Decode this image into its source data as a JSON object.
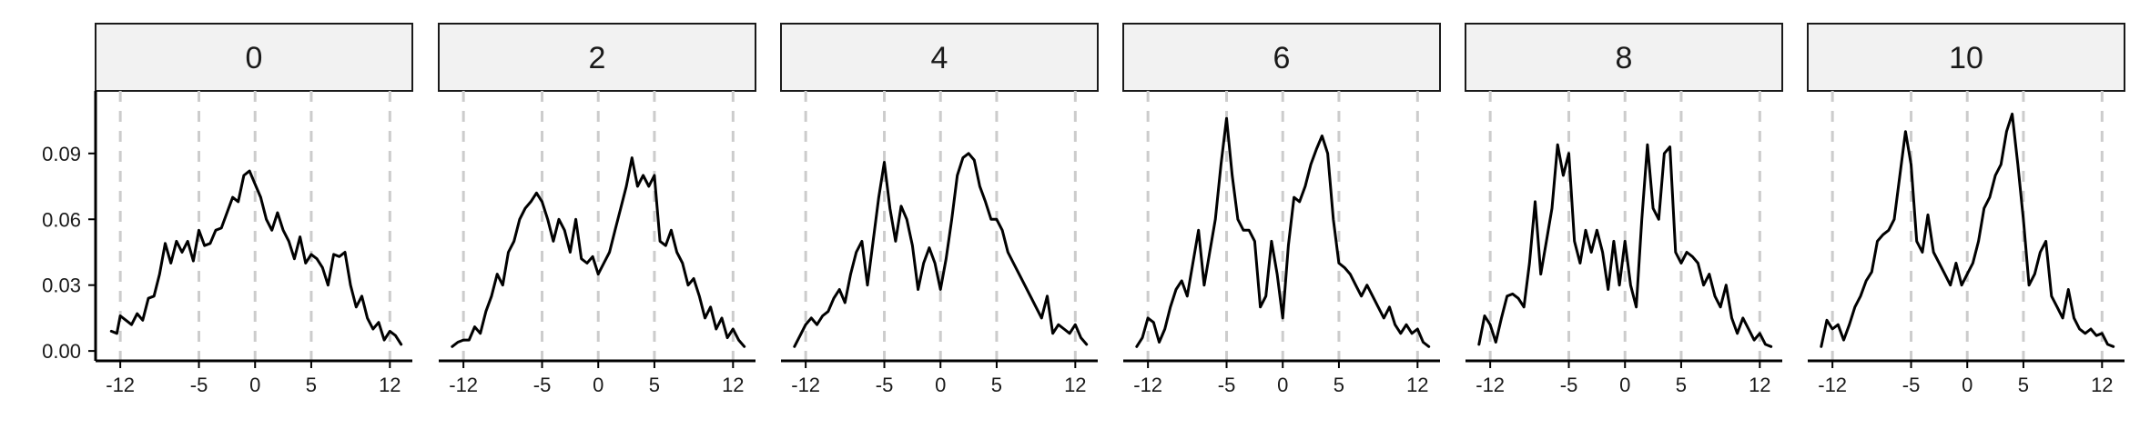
{
  "chart_data": {
    "type": "line",
    "facet_labels": [
      "0",
      "2",
      "4",
      "6",
      "8",
      "10"
    ],
    "x_ticks": [
      -12,
      -5,
      0,
      5,
      12
    ],
    "y_ticks": [
      "0.00",
      "0.03",
      "0.06",
      "0.09"
    ],
    "xlim": [
      -14.2,
      14
    ],
    "ylim": [
      -0.0045,
      0.1185
    ],
    "reference_lines_x": [
      -12,
      -5,
      0,
      5,
      12
    ],
    "line_color": "#000000",
    "reference_line_color": "#cccccc",
    "strip_fill": "#f2f2f2",
    "panels": [
      {
        "label": "0",
        "x": [
          -12.8,
          -12.3,
          -12.0,
          -11.5,
          -11.0,
          -10.5,
          -10.0,
          -9.5,
          -9.0,
          -8.5,
          -8.0,
          -7.5,
          -7.0,
          -6.5,
          -6.0,
          -5.5,
          -5.0,
          -4.5,
          -4.0,
          -3.5,
          -3.0,
          -2.5,
          -2.0,
          -1.5,
          -1.0,
          -0.5,
          0.0,
          0.5,
          1.0,
          1.5,
          2.0,
          2.5,
          3.0,
          3.5,
          4.0,
          4.5,
          5.0,
          5.5,
          6.0,
          6.5,
          7.0,
          7.5,
          8.0,
          8.5,
          9.0,
          9.5,
          10.0,
          10.5,
          11.0,
          11.5,
          12.0,
          12.5,
          13.0
        ],
        "y": [
          0.009,
          0.008,
          0.016,
          0.014,
          0.012,
          0.017,
          0.014,
          0.024,
          0.025,
          0.035,
          0.049,
          0.04,
          0.05,
          0.045,
          0.05,
          0.041,
          0.055,
          0.048,
          0.049,
          0.055,
          0.056,
          0.063,
          0.07,
          0.068,
          0.08,
          0.082,
          0.076,
          0.07,
          0.06,
          0.055,
          0.063,
          0.055,
          0.05,
          0.042,
          0.052,
          0.04,
          0.044,
          0.042,
          0.038,
          0.03,
          0.044,
          0.043,
          0.045,
          0.03,
          0.02,
          0.025,
          0.015,
          0.01,
          0.013,
          0.005,
          0.009,
          0.007,
          0.003
        ]
      },
      {
        "label": "2",
        "x": [
          -13.0,
          -12.5,
          -12.0,
          -11.5,
          -11.0,
          -10.5,
          -10.0,
          -9.5,
          -9.0,
          -8.5,
          -8.0,
          -7.5,
          -7.0,
          -6.5,
          -6.0,
          -5.5,
          -5.0,
          -4.5,
          -4.0,
          -3.5,
          -3.0,
          -2.5,
          -2.0,
          -1.5,
          -1.0,
          -0.5,
          0.0,
          0.5,
          1.0,
          1.5,
          2.0,
          2.5,
          3.0,
          3.5,
          4.0,
          4.5,
          5.0,
          5.5,
          6.0,
          6.5,
          7.0,
          7.5,
          8.0,
          8.5,
          9.0,
          9.5,
          10.0,
          10.5,
          11.0,
          11.5,
          12.0,
          12.5,
          13.0
        ],
        "y": [
          0.002,
          0.004,
          0.005,
          0.005,
          0.011,
          0.008,
          0.018,
          0.025,
          0.035,
          0.03,
          0.045,
          0.05,
          0.06,
          0.065,
          0.068,
          0.072,
          0.068,
          0.06,
          0.05,
          0.06,
          0.055,
          0.045,
          0.06,
          0.042,
          0.04,
          0.043,
          0.035,
          0.04,
          0.045,
          0.055,
          0.065,
          0.075,
          0.088,
          0.075,
          0.08,
          0.075,
          0.08,
          0.05,
          0.048,
          0.055,
          0.045,
          0.04,
          0.03,
          0.033,
          0.025,
          0.015,
          0.02,
          0.01,
          0.015,
          0.006,
          0.01,
          0.005,
          0.002
        ]
      },
      {
        "label": "4",
        "x": [
          -13.0,
          -12.5,
          -12.0,
          -11.5,
          -11.0,
          -10.5,
          -10.0,
          -9.5,
          -9.0,
          -8.5,
          -8.0,
          -7.5,
          -7.0,
          -6.5,
          -6.0,
          -5.5,
          -5.0,
          -4.5,
          -4.0,
          -3.5,
          -3.0,
          -2.5,
          -2.0,
          -1.5,
          -1.0,
          -0.5,
          0.0,
          0.5,
          1.0,
          1.5,
          2.0,
          2.5,
          3.0,
          3.5,
          4.0,
          4.5,
          5.0,
          5.5,
          6.0,
          6.5,
          7.0,
          7.5,
          8.0,
          8.5,
          9.0,
          9.5,
          10.0,
          10.5,
          11.0,
          11.5,
          12.0,
          12.5,
          13.0
        ],
        "y": [
          0.002,
          0.007,
          0.012,
          0.015,
          0.012,
          0.016,
          0.018,
          0.024,
          0.028,
          0.022,
          0.035,
          0.045,
          0.05,
          0.03,
          0.05,
          0.07,
          0.086,
          0.065,
          0.05,
          0.066,
          0.06,
          0.048,
          0.028,
          0.04,
          0.047,
          0.04,
          0.028,
          0.042,
          0.06,
          0.08,
          0.088,
          0.09,
          0.087,
          0.075,
          0.068,
          0.06,
          0.06,
          0.055,
          0.045,
          0.04,
          0.035,
          0.03,
          0.025,
          0.02,
          0.015,
          0.025,
          0.008,
          0.012,
          0.01,
          0.008,
          0.012,
          0.006,
          0.003
        ]
      },
      {
        "label": "6",
        "x": [
          -13.0,
          -12.5,
          -12.0,
          -11.5,
          -11.0,
          -10.5,
          -10.0,
          -9.5,
          -9.0,
          -8.5,
          -8.0,
          -7.5,
          -7.0,
          -6.5,
          -6.0,
          -5.5,
          -5.0,
          -4.5,
          -4.0,
          -3.5,
          -3.0,
          -2.5,
          -2.0,
          -1.5,
          -1.0,
          -0.5,
          0.0,
          0.5,
          1.0,
          1.5,
          2.0,
          2.5,
          3.0,
          3.5,
          4.0,
          4.5,
          5.0,
          5.5,
          6.0,
          6.5,
          7.0,
          7.5,
          8.0,
          8.5,
          9.0,
          9.5,
          10.0,
          10.5,
          11.0,
          11.5,
          12.0,
          12.5,
          13.0
        ],
        "y": [
          0.002,
          0.006,
          0.015,
          0.013,
          0.004,
          0.01,
          0.02,
          0.028,
          0.032,
          0.025,
          0.04,
          0.055,
          0.03,
          0.045,
          0.06,
          0.085,
          0.106,
          0.08,
          0.06,
          0.055,
          0.055,
          0.05,
          0.02,
          0.025,
          0.05,
          0.035,
          0.015,
          0.048,
          0.07,
          0.068,
          0.075,
          0.085,
          0.092,
          0.098,
          0.09,
          0.06,
          0.04,
          0.038,
          0.035,
          0.03,
          0.025,
          0.03,
          0.025,
          0.02,
          0.015,
          0.02,
          0.012,
          0.008,
          0.012,
          0.008,
          0.01,
          0.004,
          0.002
        ]
      },
      {
        "label": "8",
        "x": [
          -13.0,
          -12.5,
          -12.0,
          -11.5,
          -11.0,
          -10.5,
          -10.0,
          -9.5,
          -9.0,
          -8.5,
          -8.0,
          -7.5,
          -7.0,
          -6.5,
          -6.0,
          -5.5,
          -5.0,
          -4.5,
          -4.0,
          -3.5,
          -3.0,
          -2.5,
          -2.0,
          -1.5,
          -1.0,
          -0.5,
          0.0,
          0.5,
          1.0,
          1.5,
          2.0,
          2.5,
          3.0,
          3.5,
          4.0,
          4.5,
          5.0,
          5.5,
          6.0,
          6.5,
          7.0,
          7.5,
          8.0,
          8.5,
          9.0,
          9.5,
          10.0,
          10.5,
          11.0,
          11.5,
          12.0,
          12.5,
          13.0
        ],
        "y": [
          0.003,
          0.016,
          0.012,
          0.004,
          0.015,
          0.025,
          0.026,
          0.024,
          0.02,
          0.04,
          0.068,
          0.035,
          0.05,
          0.065,
          0.094,
          0.08,
          0.09,
          0.05,
          0.04,
          0.055,
          0.045,
          0.055,
          0.045,
          0.028,
          0.05,
          0.03,
          0.05,
          0.03,
          0.02,
          0.06,
          0.094,
          0.065,
          0.06,
          0.09,
          0.093,
          0.045,
          0.04,
          0.045,
          0.043,
          0.04,
          0.03,
          0.035,
          0.025,
          0.02,
          0.03,
          0.015,
          0.008,
          0.015,
          0.01,
          0.005,
          0.008,
          0.003,
          0.002
        ]
      },
      {
        "label": "10",
        "x": [
          -13.0,
          -12.5,
          -12.0,
          -11.5,
          -11.0,
          -10.5,
          -10.0,
          -9.5,
          -9.0,
          -8.5,
          -8.0,
          -7.5,
          -7.0,
          -6.5,
          -6.0,
          -5.5,
          -5.0,
          -4.5,
          -4.0,
          -3.5,
          -3.0,
          -2.5,
          -2.0,
          -1.5,
          -1.0,
          -0.5,
          0.0,
          0.5,
          1.0,
          1.5,
          2.0,
          2.5,
          3.0,
          3.5,
          4.0,
          4.5,
          5.0,
          5.5,
          6.0,
          6.5,
          7.0,
          7.5,
          8.0,
          8.5,
          9.0,
          9.5,
          10.0,
          10.5,
          11.0,
          11.5,
          12.0,
          12.5,
          13.0
        ],
        "y": [
          0.002,
          0.014,
          0.01,
          0.012,
          0.005,
          0.012,
          0.02,
          0.025,
          0.032,
          0.036,
          0.05,
          0.053,
          0.055,
          0.06,
          0.08,
          0.1,
          0.085,
          0.05,
          0.045,
          0.062,
          0.045,
          0.04,
          0.035,
          0.03,
          0.04,
          0.03,
          0.035,
          0.04,
          0.05,
          0.065,
          0.07,
          0.08,
          0.085,
          0.1,
          0.108,
          0.085,
          0.06,
          0.03,
          0.035,
          0.045,
          0.05,
          0.025,
          0.02,
          0.015,
          0.028,
          0.015,
          0.01,
          0.008,
          0.01,
          0.007,
          0.008,
          0.003,
          0.002
        ]
      }
    ]
  }
}
